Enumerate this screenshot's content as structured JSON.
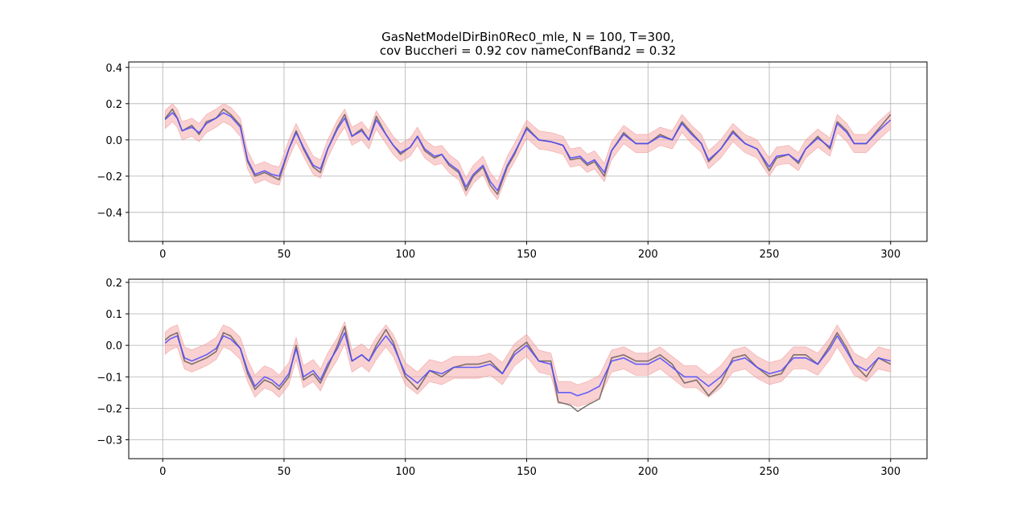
{
  "title_line1": "GasNetModelDirBin0Rec0_mle, N = 100, T=300,",
  "title_line2": "cov Buccheri = 0.92 cov nameConfBand2 = 0.32",
  "colors": {
    "true_series": "#6b5e58",
    "filtered_series": "#4a4aff",
    "band": "#f4a3a3",
    "grid": "#b0b0b0"
  },
  "chart_data": [
    {
      "type": "line",
      "title": "",
      "xlabel": "",
      "ylabel": "",
      "xlim": [
        -14,
        315
      ],
      "ylim": [
        -0.56,
        0.43
      ],
      "xticks": [
        0,
        50,
        100,
        150,
        200,
        250,
        300
      ],
      "yticks": [
        -0.4,
        -0.2,
        0.0,
        0.2,
        0.4
      ],
      "ytick_labels": [
        "−0.4",
        "−0.2",
        "0.0",
        "0.2",
        "0.4"
      ],
      "grid": true,
      "band_halfwidth": 0.05,
      "anchors_x": [
        0,
        4,
        6,
        8,
        12,
        15,
        18,
        22,
        25,
        28,
        32,
        35,
        38,
        42,
        45,
        48,
        52,
        55,
        58,
        62,
        65,
        68,
        72,
        75,
        78,
        82,
        85,
        88,
        92,
        95,
        98,
        102,
        105,
        108,
        112,
        115,
        118,
        122,
        125,
        128,
        132,
        135,
        138,
        142,
        145,
        150,
        155,
        160,
        165,
        168,
        172,
        175,
        178,
        182,
        185,
        190,
        195,
        200,
        205,
        210,
        214,
        218,
        222,
        225,
        230,
        235,
        240,
        245,
        250,
        253,
        258,
        262,
        265,
        270,
        275,
        278,
        282,
        285,
        290,
        295,
        300
      ],
      "series": [
        {
          "name": "",
          "values": [
            0.1,
            0.17,
            0.12,
            0.05,
            0.08,
            0.03,
            0.1,
            0.12,
            0.17,
            0.14,
            0.08,
            -0.12,
            -0.2,
            -0.18,
            -0.2,
            -0.22,
            -0.05,
            0.05,
            -0.05,
            -0.15,
            -0.18,
            -0.05,
            0.07,
            0.14,
            0.02,
            0.06,
            0.0,
            0.13,
            0.03,
            -0.03,
            -0.08,
            -0.04,
            0.02,
            -0.06,
            -0.1,
            -0.08,
            -0.14,
            -0.18,
            -0.28,
            -0.2,
            -0.15,
            -0.25,
            -0.3,
            -0.15,
            -0.08,
            0.07,
            0.0,
            -0.01,
            -0.03,
            -0.11,
            -0.1,
            -0.14,
            -0.12,
            -0.2,
            -0.06,
            0.04,
            -0.02,
            -0.02,
            0.03,
            0.0,
            0.1,
            0.04,
            -0.02,
            -0.12,
            -0.05,
            0.05,
            -0.02,
            -0.05,
            -0.17,
            -0.1,
            -0.08,
            -0.13,
            -0.05,
            0.02,
            -0.05,
            0.1,
            0.05,
            -0.02,
            -0.02,
            0.06,
            0.14
          ]
        },
        {
          "name": "",
          "values": [
            0.1,
            0.15,
            0.12,
            0.05,
            0.07,
            0.04,
            0.09,
            0.12,
            0.15,
            0.13,
            0.07,
            -0.11,
            -0.19,
            -0.17,
            -0.19,
            -0.2,
            -0.05,
            0.04,
            -0.04,
            -0.14,
            -0.16,
            -0.05,
            0.06,
            0.12,
            0.02,
            0.05,
            0.0,
            0.11,
            0.03,
            -0.03,
            -0.07,
            -0.04,
            0.02,
            -0.05,
            -0.09,
            -0.08,
            -0.13,
            -0.17,
            -0.26,
            -0.19,
            -0.14,
            -0.23,
            -0.28,
            -0.14,
            -0.07,
            0.06,
            0.0,
            -0.01,
            -0.03,
            -0.1,
            -0.09,
            -0.13,
            -0.11,
            -0.18,
            -0.06,
            0.03,
            -0.02,
            -0.02,
            0.02,
            0.0,
            0.09,
            0.03,
            -0.02,
            -0.11,
            -0.05,
            0.04,
            -0.02,
            -0.05,
            -0.15,
            -0.09,
            -0.08,
            -0.12,
            -0.05,
            0.01,
            -0.04,
            0.09,
            0.04,
            -0.02,
            -0.02,
            0.05,
            0.11
          ]
        }
      ]
    },
    {
      "type": "line",
      "title": "",
      "xlabel": "",
      "ylabel": "",
      "xlim": [
        -14,
        315
      ],
      "ylim": [
        -0.36,
        0.21
      ],
      "xticks": [
        0,
        50,
        100,
        150,
        200,
        250,
        300
      ],
      "yticks": [
        -0.3,
        -0.2,
        -0.1,
        0.0,
        0.1,
        0.2
      ],
      "ytick_labels": [
        "−0.3",
        "−0.2",
        "−0.1",
        "0.0",
        "0.1",
        "0.2"
      ],
      "grid": true,
      "band_halfwidth": 0.035,
      "anchors_x": [
        0,
        3,
        6,
        9,
        12,
        15,
        18,
        22,
        25,
        28,
        32,
        35,
        38,
        42,
        45,
        48,
        52,
        55,
        58,
        62,
        65,
        68,
        72,
        75,
        78,
        82,
        85,
        88,
        92,
        95,
        100,
        105,
        110,
        115,
        120,
        125,
        130,
        135,
        140,
        145,
        150,
        155,
        160,
        163,
        168,
        171,
        175,
        180,
        185,
        190,
        195,
        200,
        205,
        210,
        215,
        220,
        225,
        230,
        235,
        240,
        245,
        250,
        255,
        260,
        265,
        270,
        275,
        278,
        282,
        285,
        290,
        295,
        300
      ],
      "series": [
        {
          "name": "",
          "values": [
            0.01,
            0.03,
            0.04,
            -0.05,
            -0.06,
            -0.05,
            -0.04,
            -0.02,
            0.04,
            0.03,
            -0.01,
            -0.09,
            -0.14,
            -0.11,
            -0.12,
            -0.14,
            -0.1,
            0.0,
            -0.11,
            -0.09,
            -0.12,
            -0.07,
            0.0,
            0.06,
            -0.05,
            -0.03,
            -0.05,
            0.0,
            0.05,
            0.01,
            -0.1,
            -0.14,
            -0.08,
            -0.1,
            -0.07,
            -0.06,
            -0.06,
            -0.05,
            -0.09,
            -0.02,
            0.01,
            -0.05,
            -0.05,
            -0.18,
            -0.19,
            -0.21,
            -0.19,
            -0.17,
            -0.04,
            -0.03,
            -0.05,
            -0.05,
            -0.03,
            -0.06,
            -0.12,
            -0.11,
            -0.16,
            -0.12,
            -0.04,
            -0.03,
            -0.07,
            -0.1,
            -0.09,
            -0.03,
            -0.03,
            -0.06,
            0.0,
            0.04,
            -0.01,
            -0.06,
            -0.1,
            -0.04,
            -0.06
          ]
        },
        {
          "name": "",
          "values": [
            0.0,
            0.02,
            0.03,
            -0.04,
            -0.05,
            -0.04,
            -0.03,
            -0.01,
            0.03,
            0.02,
            -0.01,
            -0.08,
            -0.13,
            -0.1,
            -0.11,
            -0.13,
            -0.09,
            -0.01,
            -0.1,
            -0.08,
            -0.11,
            -0.06,
            -0.01,
            0.04,
            -0.05,
            -0.03,
            -0.05,
            -0.01,
            0.03,
            0.0,
            -0.09,
            -0.12,
            -0.08,
            -0.09,
            -0.07,
            -0.07,
            -0.07,
            -0.06,
            -0.09,
            -0.03,
            0.0,
            -0.05,
            -0.06,
            -0.15,
            -0.15,
            -0.16,
            -0.15,
            -0.13,
            -0.05,
            -0.04,
            -0.06,
            -0.06,
            -0.04,
            -0.07,
            -0.1,
            -0.1,
            -0.13,
            -0.1,
            -0.05,
            -0.04,
            -0.07,
            -0.09,
            -0.08,
            -0.04,
            -0.04,
            -0.06,
            -0.01,
            0.03,
            -0.02,
            -0.06,
            -0.08,
            -0.04,
            -0.05
          ]
        }
      ]
    }
  ]
}
